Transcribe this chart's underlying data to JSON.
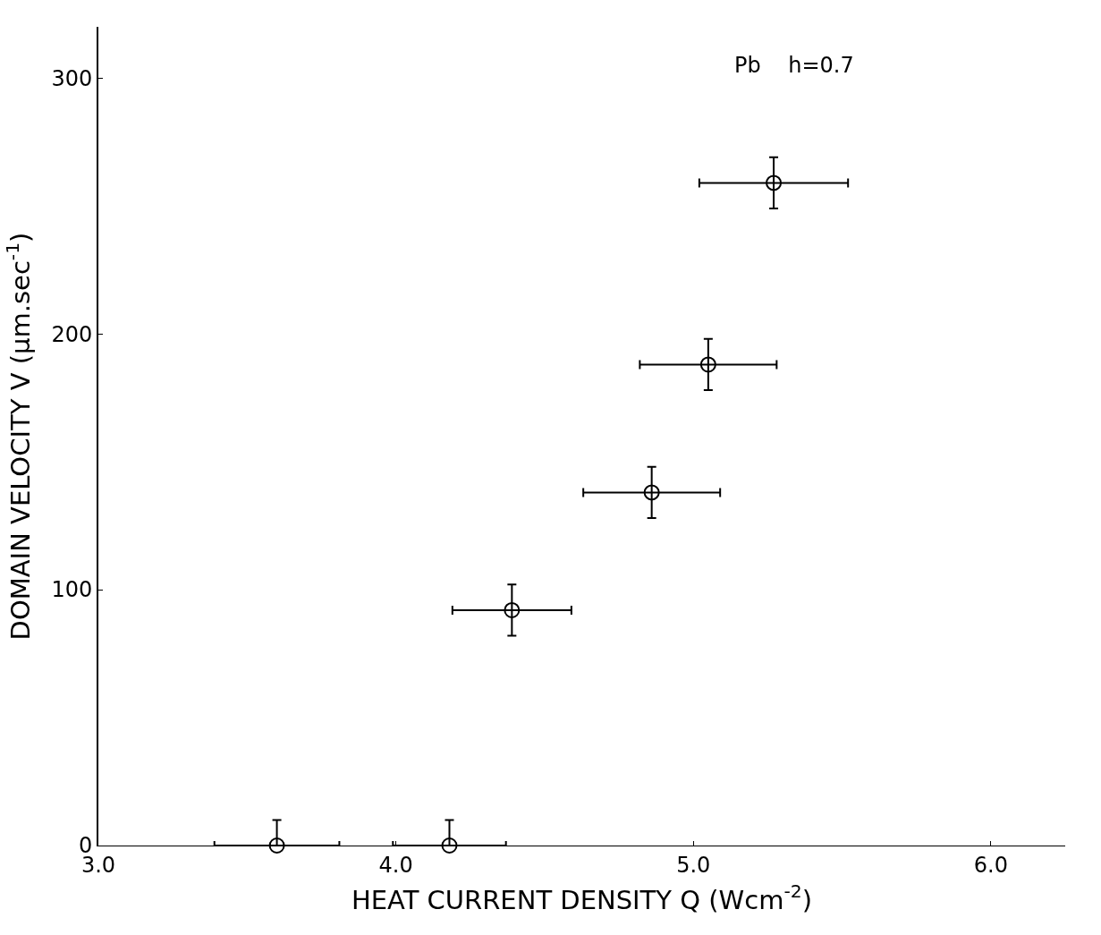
{
  "chart_data": {
    "type": "scatter",
    "xlabel": "HEAT CURRENT DENSITY Q (Wcm$^{-2}$)",
    "ylabel": "DOMAIN VELOCITY V (μm.sec$^{-1}$)",
    "annotations": [
      "Pb    h=0.7"
    ],
    "x": [
      3.6,
      4.18,
      4.39,
      4.86,
      5.05,
      5.27
    ],
    "values": [
      0,
      0,
      92,
      138,
      188,
      259
    ],
    "errors": [
      10,
      10,
      10,
      10,
      10,
      10
    ],
    "xerrors": [
      0.21,
      0.19,
      0.2,
      0.23,
      0.23,
      0.25
    ],
    "color": "#000000",
    "marker": "circle",
    "xlim": [
      3.0,
      6.25
    ],
    "xticks": [
      {
        "value": 3.0,
        "label": "3.0"
      },
      {
        "value": 4.0,
        "label": "4.0"
      },
      {
        "value": 5.0,
        "label": "5.0"
      },
      {
        "value": 6.0,
        "label": "6.0"
      }
    ],
    "ylim": [
      0,
      320
    ],
    "yticks": [
      0,
      100,
      200,
      300
    ],
    "legend": false
  }
}
